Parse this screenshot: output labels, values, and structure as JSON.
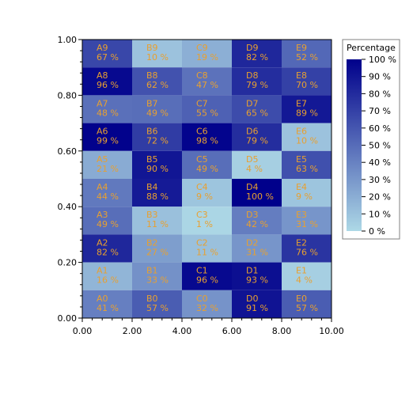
{
  "chart_data": {
    "type": "heatmap",
    "x_range": [
      0,
      10
    ],
    "y_range": [
      0,
      1
    ],
    "x_ticks": [
      "0.00",
      "2.00",
      "4.00",
      "6.00",
      "8.00",
      "10.00"
    ],
    "y_ticks": [
      "0.00",
      "0.20",
      "0.40",
      "0.60",
      "0.80",
      "1.00"
    ],
    "columns": [
      "A",
      "B",
      "C",
      "D",
      "E"
    ],
    "rows": [
      {
        "index": 9,
        "values": [
          67,
          10,
          19,
          82,
          52
        ]
      },
      {
        "index": 8,
        "values": [
          96,
          62,
          47,
          79,
          70
        ]
      },
      {
        "index": 7,
        "values": [
          48,
          49,
          55,
          65,
          89
        ]
      },
      {
        "index": 6,
        "values": [
          99,
          72,
          98,
          79,
          10
        ]
      },
      {
        "index": 5,
        "values": [
          21,
          90,
          49,
          4,
          63
        ]
      },
      {
        "index": 4,
        "values": [
          44,
          88,
          9,
          100,
          9
        ]
      },
      {
        "index": 3,
        "values": [
          49,
          11,
          1,
          42,
          31
        ]
      },
      {
        "index": 2,
        "values": [
          82,
          27,
          11,
          31,
          76
        ]
      },
      {
        "index": 1,
        "values": [
          16,
          33,
          96,
          93,
          4
        ]
      },
      {
        "index": 0,
        "values": [
          41,
          57,
          32,
          91,
          57
        ]
      }
    ],
    "value_suffix": " %",
    "cell_text_color": "#e8a030",
    "color_scale": {
      "low": "#add8e6",
      "high": "#00008b"
    },
    "legend": {
      "title": "Percentage",
      "labels": [
        "100 %",
        "90 %",
        "80 %",
        "70 %",
        "60 %",
        "50 %",
        "40 %",
        "30 %",
        "20 %",
        "10 %",
        "0 %"
      ],
      "placement": "right"
    },
    "grid": false
  }
}
